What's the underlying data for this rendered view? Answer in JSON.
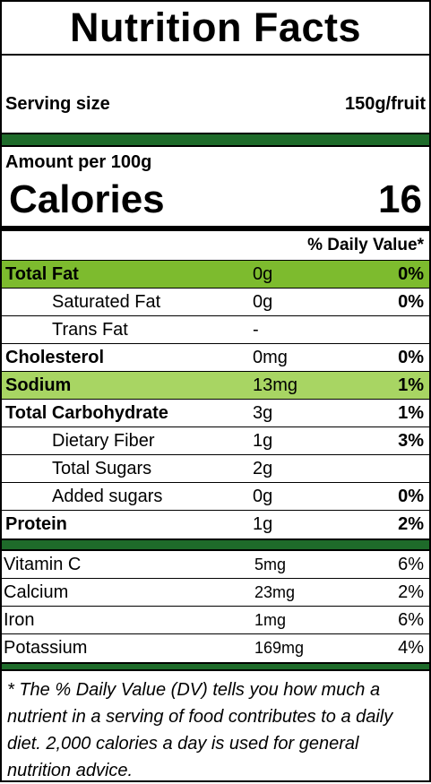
{
  "title": "Nutrition Facts",
  "serving": {
    "label": "Serving size",
    "value": "150g/fruit"
  },
  "amount_per": "Amount per 100g",
  "calories": {
    "label": "Calories",
    "value": "16"
  },
  "dv_header": "% Daily Value*",
  "nutrients": [
    {
      "name": "Total Fat",
      "amount": "0g",
      "dv": "0%"
    },
    {
      "name": "Saturated Fat",
      "amount": "0g",
      "dv": "0%"
    },
    {
      "name": "Trans Fat",
      "amount": "-",
      "dv": ""
    },
    {
      "name": "Cholesterol",
      "amount": "0mg",
      "dv": "0%"
    },
    {
      "name": "Sodium",
      "amount": "13mg",
      "dv": "1%"
    },
    {
      "name": "Total Carbohydrate",
      "amount": "3g",
      "dv": "1%"
    },
    {
      "name": "Dietary Fiber",
      "amount": "1g",
      "dv": "3%"
    },
    {
      "name": "Total Sugars",
      "amount": "2g",
      "dv": ""
    },
    {
      "name": "Added sugars",
      "amount": "0g",
      "dv": "0%"
    },
    {
      "name": "Protein",
      "amount": "1g",
      "dv": "2%"
    }
  ],
  "vitamins": [
    {
      "name": "Vitamin C",
      "amount": "5mg",
      "dv": "6%"
    },
    {
      "name": "Calcium",
      "amount": "23mg",
      "dv": "2%"
    },
    {
      "name": "Iron",
      "amount": "1mg",
      "dv": "6%"
    },
    {
      "name": "Potassium",
      "amount": "169mg",
      "dv": "4%"
    }
  ],
  "footnote": "* The % Daily Value (DV) tells you how much a nutrient in a serving of food contributes to a daily diet. 2,000 calories a day is used for general nutrition advice.",
  "colors": {
    "bar_green": "#1e6b2a",
    "highlight_dark": "#7dbb2e",
    "highlight_light": "#a8d563"
  }
}
